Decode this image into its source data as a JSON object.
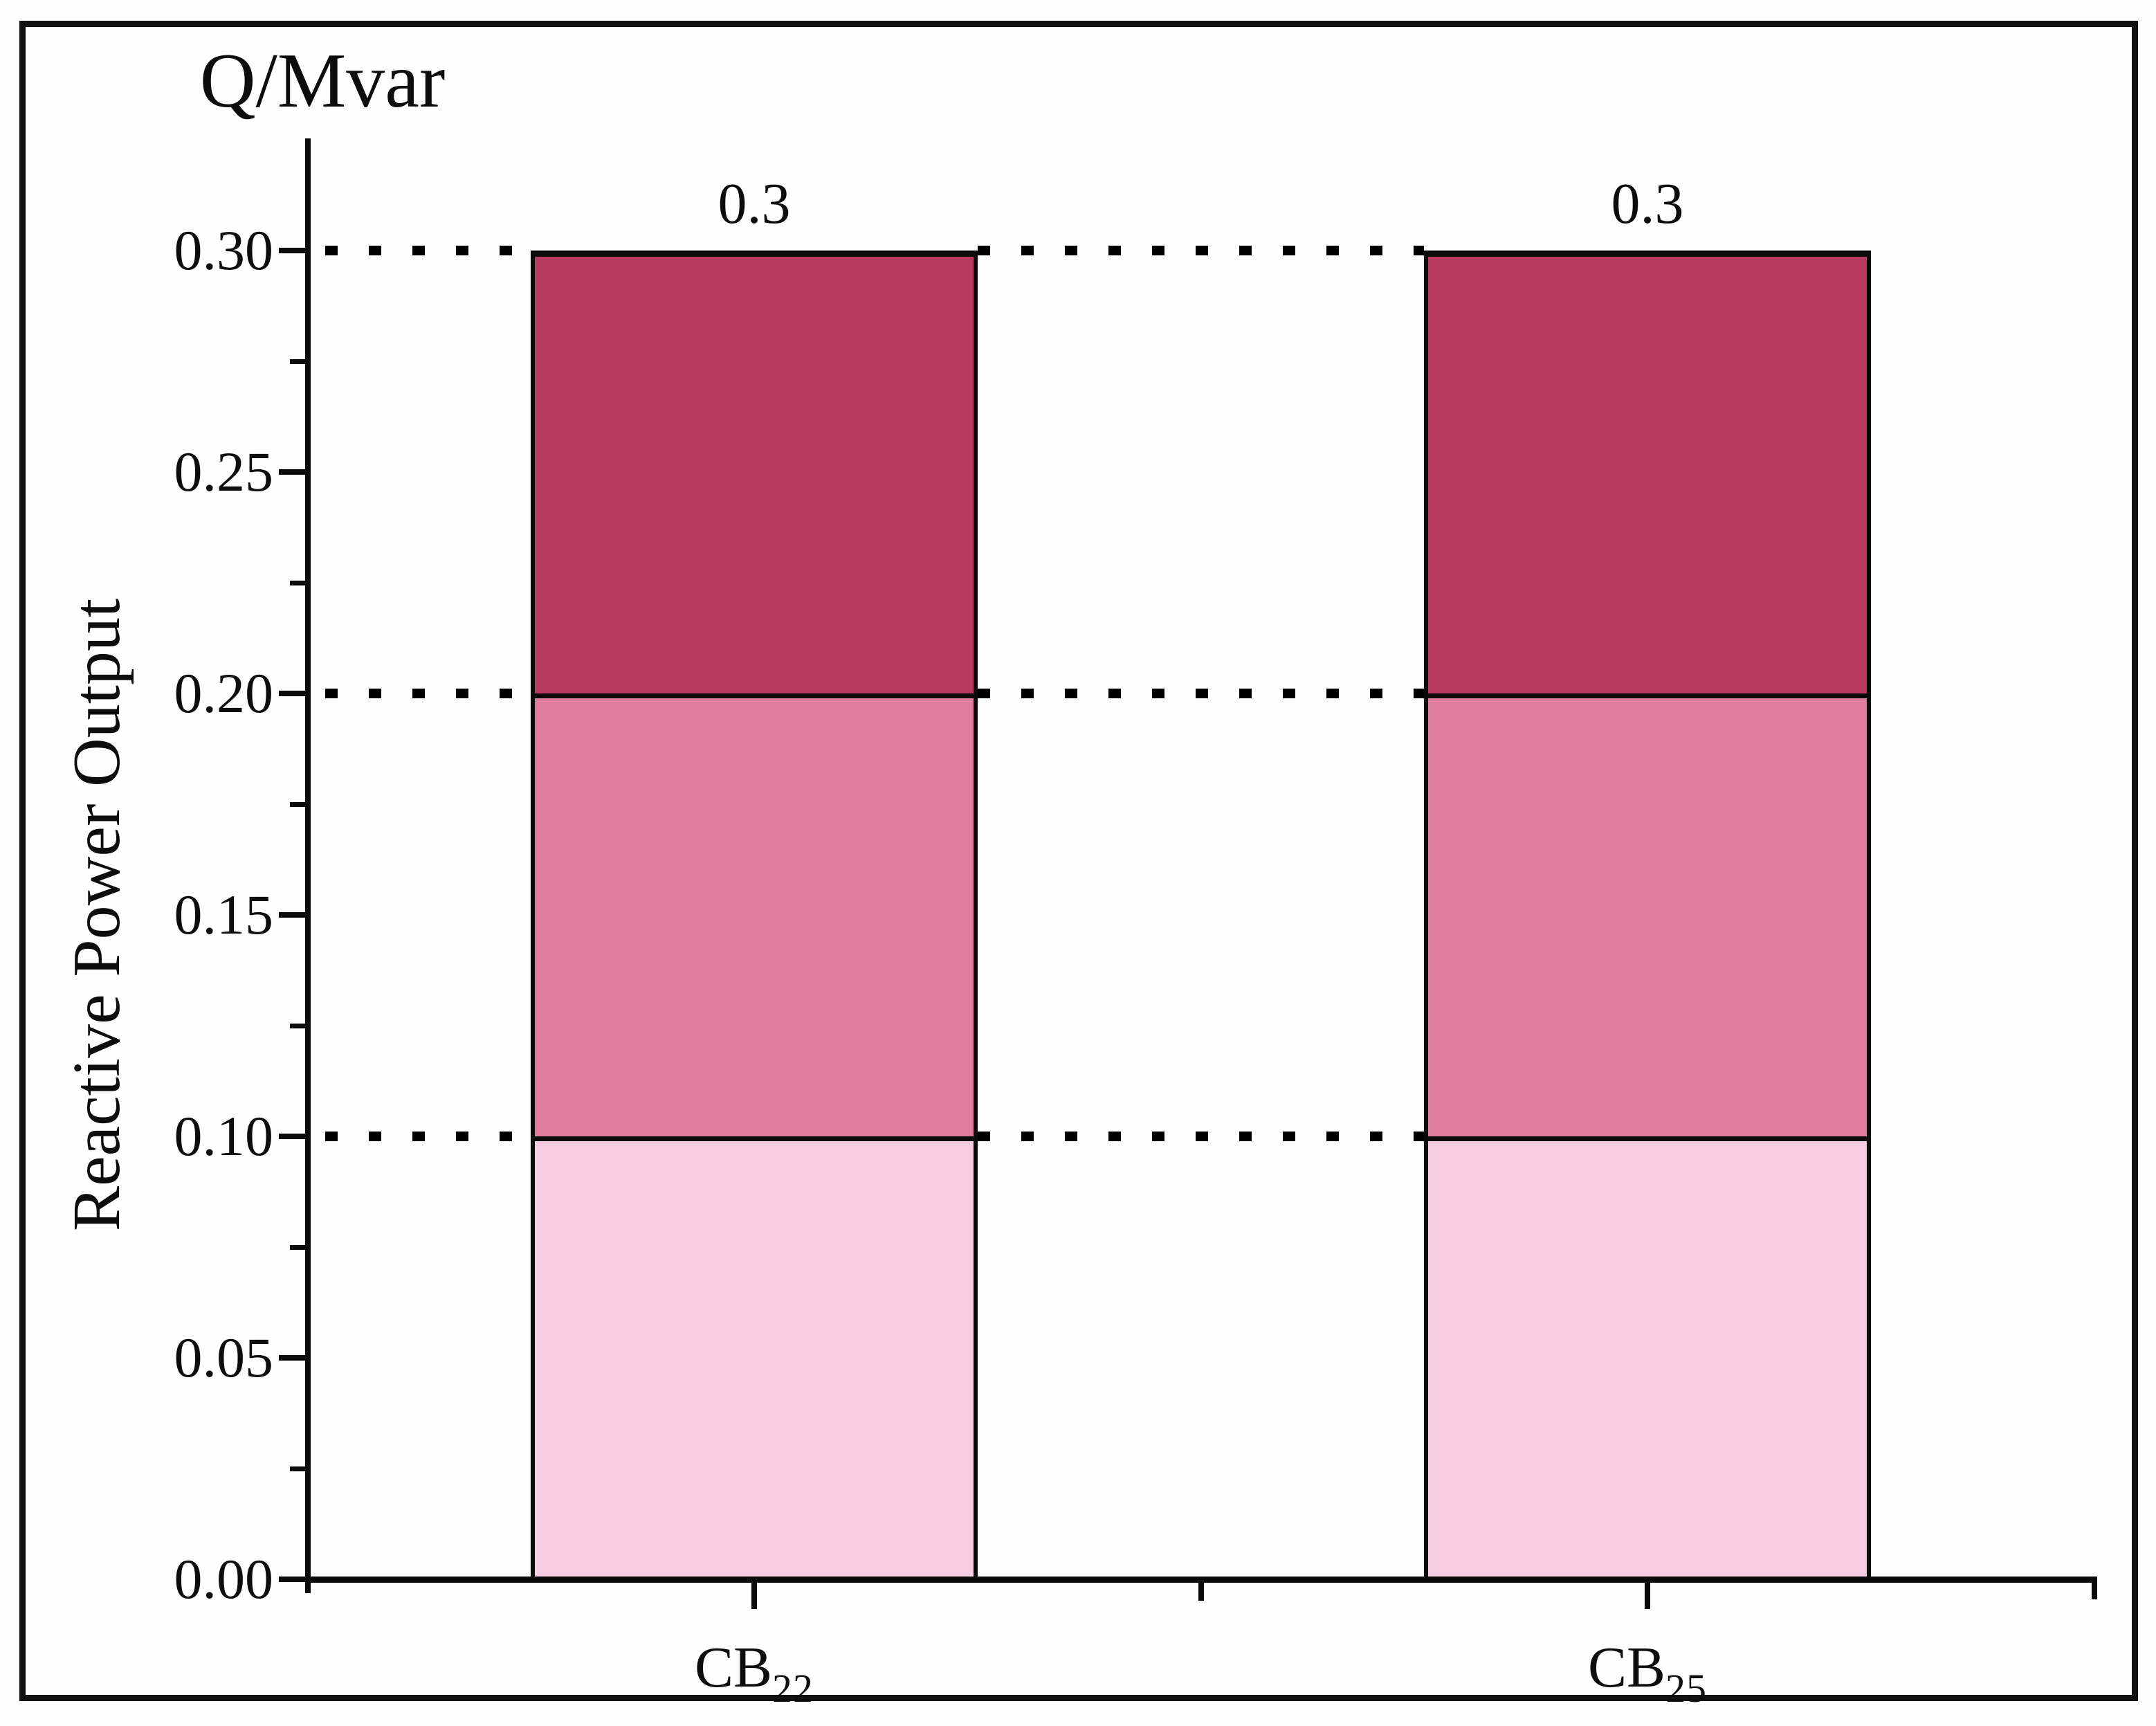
{
  "figure": {
    "title": "Q/Mvar",
    "background": "#fefefe",
    "frame_color": "#111111"
  },
  "chart_data": {
    "type": "bar",
    "stacked": true,
    "title": "Q/Mvar",
    "xlabel": "",
    "ylabel": "Reactive Power Output",
    "categories": [
      {
        "base": "CB",
        "sub": "22"
      },
      {
        "base": "CB",
        "sub": "25"
      }
    ],
    "series": [
      {
        "name": "segment-0.0-0.1",
        "color": "#f6cce0",
        "values": [
          0.1,
          0.1
        ]
      },
      {
        "name": "segment-0.1-0.2",
        "color": "#de7d9e",
        "values": [
          0.1,
          0.1
        ]
      },
      {
        "name": "segment-0.2-0.3",
        "color": "#b93a60",
        "values": [
          0.1,
          0.1
        ]
      }
    ],
    "bar_total_labels": [
      "0.3",
      "0.3"
    ],
    "y_tick_labels": [
      "0.30",
      "0.25",
      "0.20",
      "0.15",
      "0.10",
      "0.05",
      "0.00"
    ],
    "y_tick_values": [
      0.3,
      0.25,
      0.2,
      0.15,
      0.1,
      0.05,
      0.0
    ],
    "y_minor_tick_values": [
      0.025,
      0.075,
      0.125,
      0.175,
      0.225,
      0.275
    ],
    "ylim": [
      0,
      0.325
    ],
    "grid": {
      "style": "dotted",
      "levels": [
        0.3,
        0.2,
        0.1
      ],
      "color": "#000000"
    },
    "legend": "none",
    "outline_color": "#0a0a0a"
  }
}
